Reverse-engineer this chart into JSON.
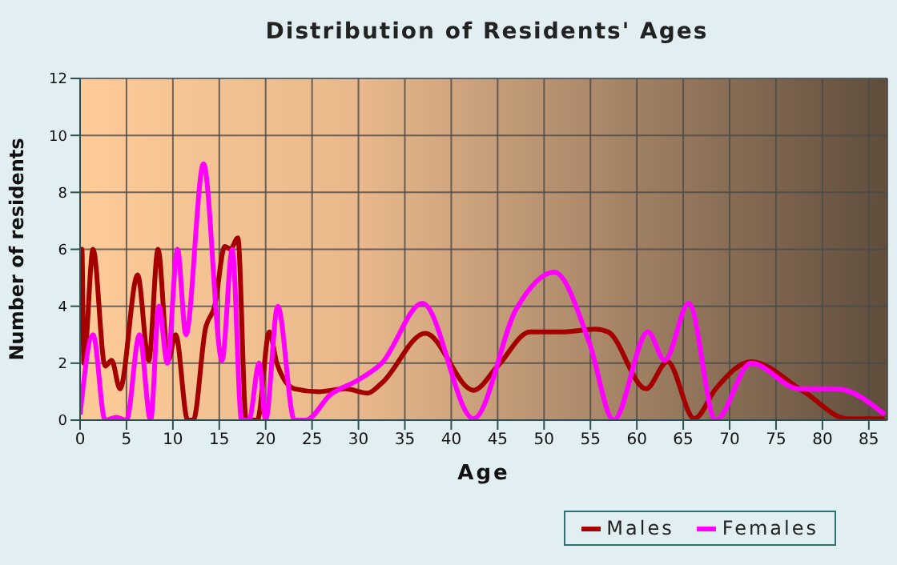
{
  "chart_data": {
    "type": "line",
    "title": "Distribution of Residents' Ages",
    "xlabel": "Age",
    "ylabel": "Number of residents",
    "xlim": [
      0,
      87
    ],
    "xticks": [
      0,
      5,
      10,
      15,
      20,
      25,
      30,
      35,
      40,
      45,
      50,
      55,
      60,
      65,
      70,
      75,
      80,
      85
    ],
    "ylim": [
      0,
      12
    ],
    "yticks": [
      0,
      2,
      4,
      6,
      8,
      10,
      12
    ],
    "grid": true,
    "legend": "bottom right",
    "marker": "none",
    "line_style": "solid",
    "series": [
      {
        "name": "Males",
        "color": "#a50000",
        "x": [
          0,
          0.2,
          0.4,
          1.4,
          2.7,
          3.4,
          4.3,
          6.2,
          7.4,
          8.4,
          9.5,
          10.3,
          11.6,
          12.2,
          13.5,
          14.5,
          15.6,
          16.2,
          17,
          17.9,
          19.1,
          20.4,
          21.2,
          23.1,
          25.7,
          28.6,
          31,
          32.5,
          37.2,
          42.4,
          45,
          48.5,
          52,
          55.5,
          56.9,
          61,
          63.3,
          66.2,
          68.5,
          72.3,
          78,
          82.7,
          86.7
        ],
        "values": [
          4,
          6,
          2,
          6,
          1.9,
          2.1,
          1.1,
          5.1,
          2.1,
          6,
          2.1,
          3,
          0,
          0,
          3.2,
          4,
          6.1,
          6,
          6.4,
          0,
          0,
          3.1,
          2,
          1.1,
          1,
          1.1,
          0.95,
          1.3,
          3.05,
          1.05,
          1.9,
          3.1,
          3.1,
          3.2,
          3.1,
          1.1,
          2.05,
          0.05,
          1.1,
          2.05,
          1,
          0.05,
          0.05
        ]
      },
      {
        "name": "Females",
        "color": "#ff00ff",
        "x": [
          0,
          1.4,
          2.7,
          3.9,
          5,
          6.4,
          7.6,
          8.5,
          9.4,
          10.5,
          11.4,
          13.3,
          15.3,
          16.4,
          17.4,
          18.2,
          19.3,
          20,
          21.3,
          23.1,
          24.3,
          27,
          29.9,
          32.5,
          36.9,
          42.4,
          47,
          51.1,
          54.9,
          57.5,
          61.2,
          63,
          65.6,
          68.5,
          72.3,
          77.5,
          81.5,
          86.7
        ],
        "values": [
          0.2,
          3,
          0,
          0.1,
          0,
          3,
          0,
          4,
          2,
          6,
          3,
          9,
          2.1,
          6,
          0,
          0,
          2,
          0,
          4,
          0,
          0,
          0.9,
          1.4,
          2,
          4.1,
          0.05,
          3.9,
          5.2,
          2.7,
          0,
          3.1,
          2.1,
          4.1,
          0,
          2,
          1.1,
          1.1,
          0.2
        ]
      }
    ]
  }
}
